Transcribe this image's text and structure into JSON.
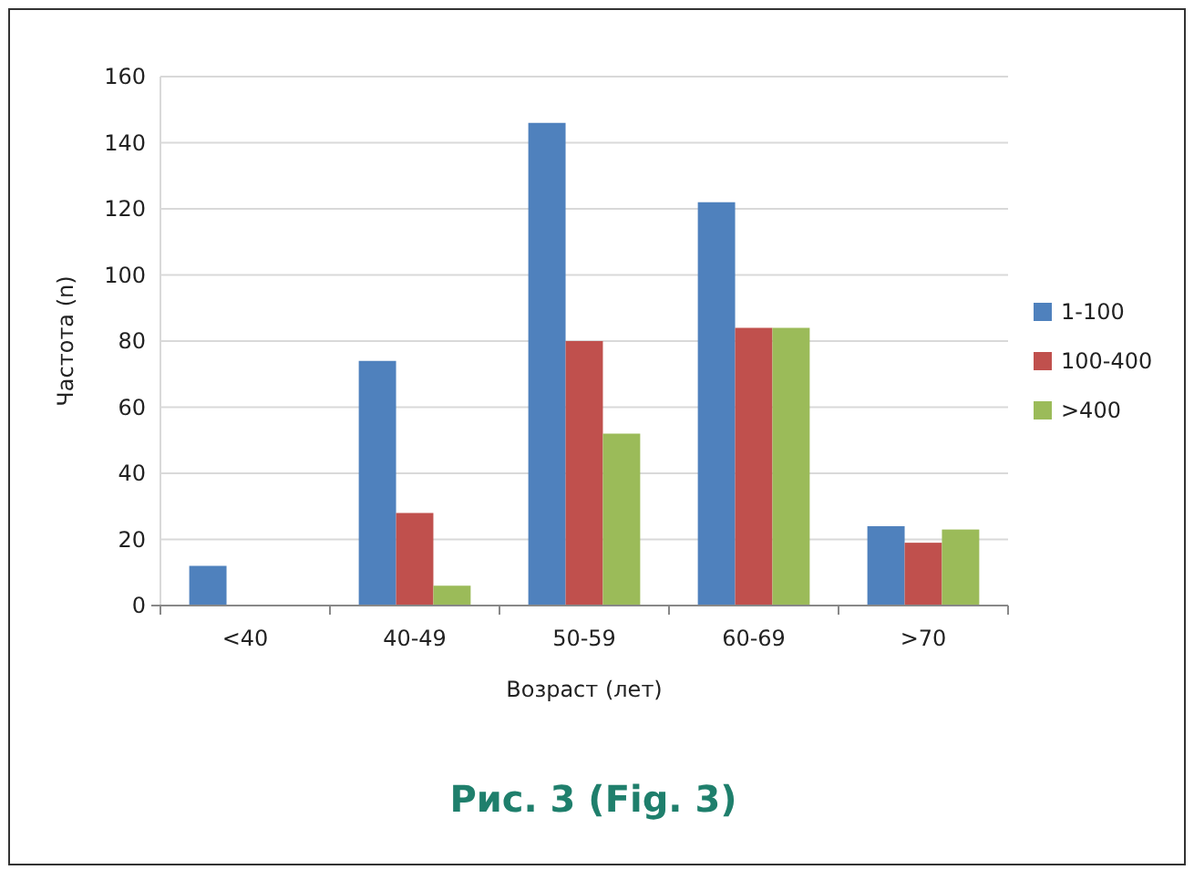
{
  "chart_data": {
    "type": "bar",
    "title": "Рис. 3 (Fig. 3)",
    "xlabel": "Возраст (лет)",
    "ylabel": "Частота (n)",
    "categories": [
      "<40",
      "40-49",
      "50-59",
      "60-69",
      ">70"
    ],
    "series": [
      {
        "name": "1-100",
        "color": "#4f81bd",
        "values": [
          12,
          74,
          146,
          122,
          24
        ]
      },
      {
        "name": "100-400",
        "color": "#c0504d",
        "values": [
          0,
          28,
          80,
          84,
          19
        ]
      },
      {
        "name": ">400",
        "color": "#9bbb59",
        "values": [
          0,
          6,
          52,
          84,
          23
        ]
      }
    ],
    "ylim": [
      0,
      160
    ],
    "yticks": [
      0,
      20,
      40,
      60,
      80,
      100,
      120,
      140,
      160
    ],
    "grid": "y",
    "legend": "right"
  }
}
